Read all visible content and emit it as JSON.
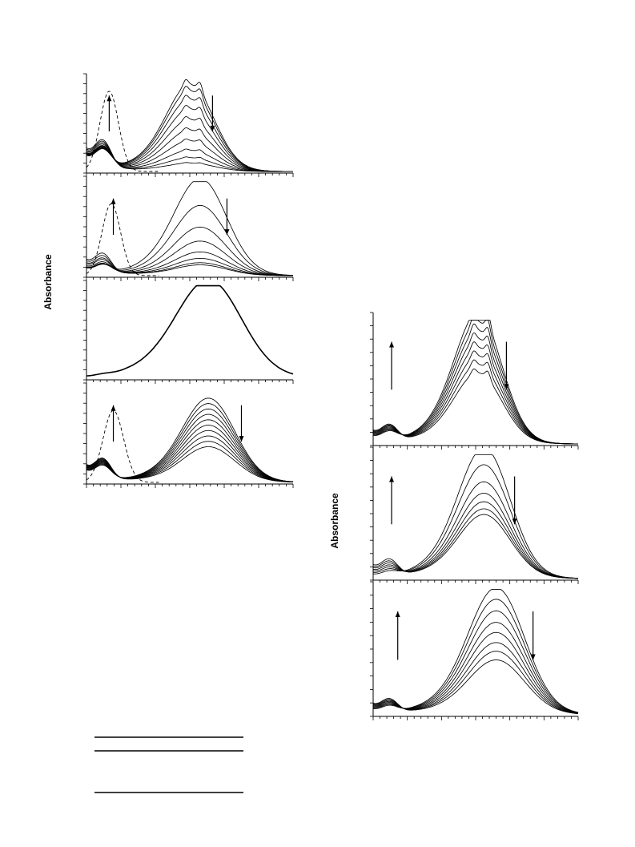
{
  "chart_data": [
    {
      "type": "line",
      "group": "left",
      "ylabel": "Absorbance",
      "panels": [
        {
          "id": "left-1",
          "dashed_band": {
            "center": 0.11,
            "width": 0.045,
            "height": 0.85
          },
          "main_band": {
            "center": 0.51,
            "width": 0.11
          },
          "series": [
            {
              "main": 0.82,
              "short": 0.26
            },
            {
              "main": 0.76,
              "short": 0.27
            },
            {
              "main": 0.68,
              "short": 0.28
            },
            {
              "main": 0.59,
              "short": 0.29
            },
            {
              "main": 0.49,
              "short": 0.3
            },
            {
              "main": 0.39,
              "short": 0.31
            },
            {
              "main": 0.29,
              "short": 0.33
            },
            {
              "main": 0.2,
              "short": 0.35
            },
            {
              "main": 0.13,
              "short": 0.37
            },
            {
              "main": 0.08,
              "short": 0.39
            }
          ],
          "arrows": [
            {
              "x": 0.11,
              "direction": "up"
            },
            {
              "x": 0.61,
              "direction": "down"
            }
          ]
        },
        {
          "id": "left-2",
          "dashed_band": {
            "center": 0.12,
            "width": 0.045,
            "height": 0.75
          },
          "main_band": {
            "center": 0.56,
            "width": 0.12
          },
          "series": [
            {
              "main": 0.9,
              "short": 0.12
            },
            {
              "main": 0.65,
              "short": 0.13
            },
            {
              "main": 0.45,
              "short": 0.14
            },
            {
              "main": 0.32,
              "short": 0.16
            },
            {
              "main": 0.22,
              "short": 0.19
            },
            {
              "main": 0.16,
              "short": 0.21
            },
            {
              "main": 0.12,
              "short": 0.24
            },
            {
              "main": 0.1,
              "short": 0.27
            }
          ],
          "arrows": [
            {
              "x": 0.13,
              "direction": "up"
            },
            {
              "x": 0.68,
              "direction": "down"
            }
          ]
        },
        {
          "id": "left-3",
          "main_band": {
            "center": 0.6,
            "width": 0.15
          },
          "series": [
            {
              "main": 0.92,
              "short": 0.02,
              "bold": true
            }
          ],
          "arrows": []
        },
        {
          "id": "left-4",
          "dashed_band": {
            "center": 0.13,
            "width": 0.05,
            "height": 0.75
          },
          "main_band": {
            "center": 0.6,
            "width": 0.12
          },
          "series": [
            {
              "main": 0.78,
              "short": 0.2
            },
            {
              "main": 0.73,
              "short": 0.21
            },
            {
              "main": 0.68,
              "short": 0.22
            },
            {
              "main": 0.63,
              "short": 0.23
            },
            {
              "main": 0.58,
              "short": 0.24
            },
            {
              "main": 0.53,
              "short": 0.25
            },
            {
              "main": 0.48,
              "short": 0.26
            },
            {
              "main": 0.43,
              "short": 0.27
            },
            {
              "main": 0.38,
              "short": 0.28
            },
            {
              "main": 0.33,
              "short": 0.29
            }
          ],
          "arrows": [
            {
              "x": 0.13,
              "direction": "up"
            },
            {
              "x": 0.75,
              "direction": "down"
            }
          ]
        }
      ]
    },
    {
      "type": "line",
      "group": "right",
      "ylabel": "Absorbance",
      "panels": [
        {
          "id": "right-1",
          "main_band": {
            "center": 0.52,
            "width": 0.11
          },
          "series": [
            {
              "main": 0.92,
              "short": 0.1
            },
            {
              "main": 0.86,
              "short": 0.11
            },
            {
              "main": 0.8,
              "short": 0.12
            },
            {
              "main": 0.74,
              "short": 0.13
            },
            {
              "main": 0.68,
              "short": 0.14
            },
            {
              "main": 0.62,
              "short": 0.15
            },
            {
              "main": 0.56,
              "short": 0.16
            },
            {
              "main": 0.5,
              "short": 0.17
            }
          ],
          "arrows": [
            {
              "x": 0.09,
              "direction": "up"
            },
            {
              "x": 0.65,
              "direction": "down"
            }
          ]
        },
        {
          "id": "right-2",
          "main_band": {
            "center": 0.55,
            "width": 0.12
          },
          "series": [
            {
              "main": 0.92,
              "short": 0.05
            },
            {
              "main": 0.8,
              "short": 0.07
            },
            {
              "main": 0.68,
              "short": 0.09
            },
            {
              "main": 0.6,
              "short": 0.11
            },
            {
              "main": 0.54,
              "short": 0.13
            },
            {
              "main": 0.49,
              "short": 0.15
            },
            {
              "main": 0.45,
              "short": 0.17
            }
          ],
          "arrows": [
            {
              "x": 0.09,
              "direction": "up"
            },
            {
              "x": 0.69,
              "direction": "down"
            }
          ]
        },
        {
          "id": "right-3",
          "main_band": {
            "center": 0.61,
            "width": 0.13
          },
          "series": [
            {
              "main": 0.88,
              "short": 0.07
            },
            {
              "main": 0.8,
              "short": 0.08
            },
            {
              "main": 0.72,
              "short": 0.09
            },
            {
              "main": 0.64,
              "short": 0.1
            },
            {
              "main": 0.57,
              "short": 0.11
            },
            {
              "main": 0.5,
              "short": 0.12
            },
            {
              "main": 0.44,
              "short": 0.13
            },
            {
              "main": 0.38,
              "short": 0.14
            }
          ],
          "arrows": [
            {
              "x": 0.12,
              "direction": "up"
            },
            {
              "x": 0.78,
              "direction": "down"
            }
          ]
        }
      ]
    }
  ]
}
